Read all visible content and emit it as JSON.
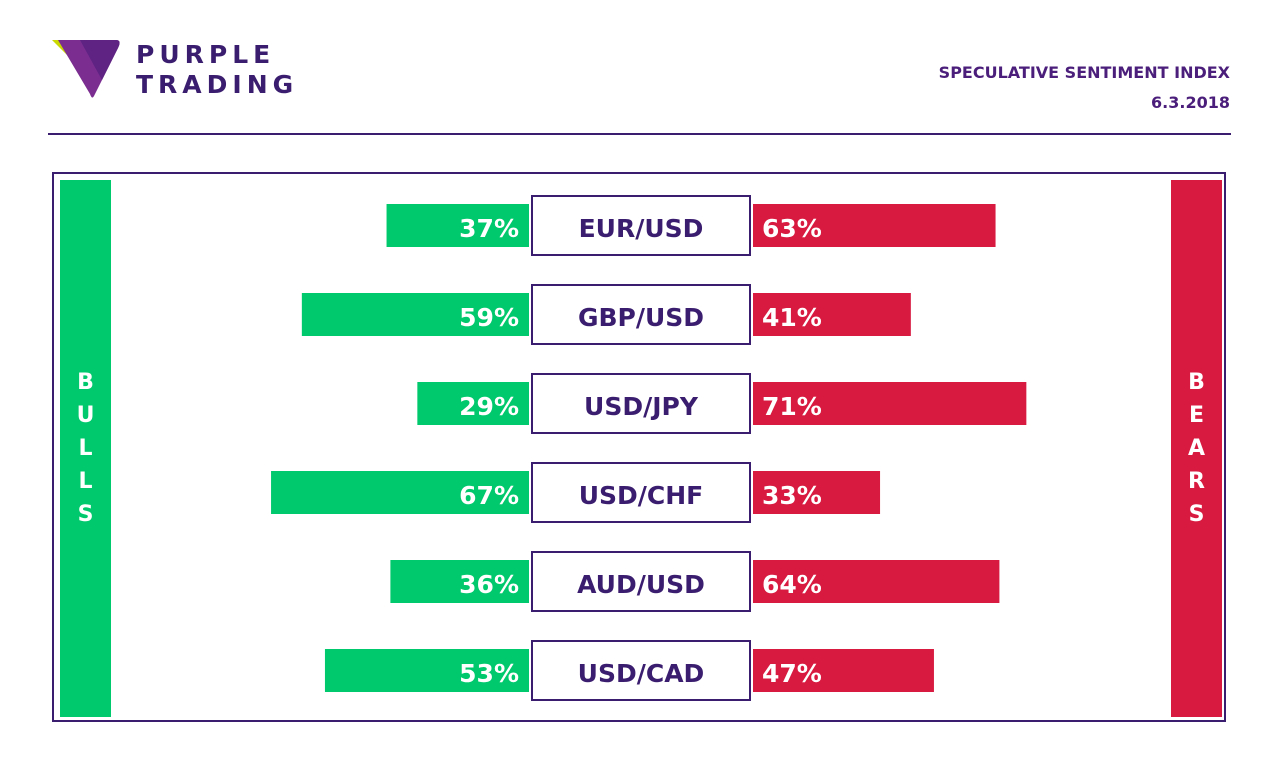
{
  "brand": {
    "line1": "PURPLE",
    "line2": "TRADING",
    "logo_icon": "purple-diamond-logo-icon",
    "colors": {
      "purple": "#3a1d6e",
      "accent_purple": "#7b2d90",
      "lime": "#c8d800"
    }
  },
  "header": {
    "title": "SPECULATIVE SENTIMENT INDEX",
    "date": "6.3.2018"
  },
  "sides": {
    "bulls": "BULLS",
    "bears": "BEARS"
  },
  "colors": {
    "bulls": "#00c86c",
    "bears": "#d81a40",
    "frame": "#3a1d6e"
  },
  "chart_data": {
    "type": "bar",
    "categories": [
      "EUR/USD",
      "GBP/USD",
      "USD/JPY",
      "USD/CHF",
      "AUD/USD",
      "USD/CAD"
    ],
    "series": [
      {
        "name": "BULLS",
        "values": [
          37,
          59,
          29,
          67,
          36,
          53
        ]
      },
      {
        "name": "BEARS",
        "values": [
          63,
          41,
          71,
          33,
          64,
          47
        ]
      }
    ],
    "labels_bulls": [
      "37%",
      "59%",
      "29%",
      "67%",
      "36%",
      "53%"
    ],
    "labels_bears": [
      "63%",
      "41%",
      "71%",
      "33%",
      "64%",
      "47%"
    ],
    "unit": "%",
    "xlim": [
      0,
      100
    ]
  }
}
